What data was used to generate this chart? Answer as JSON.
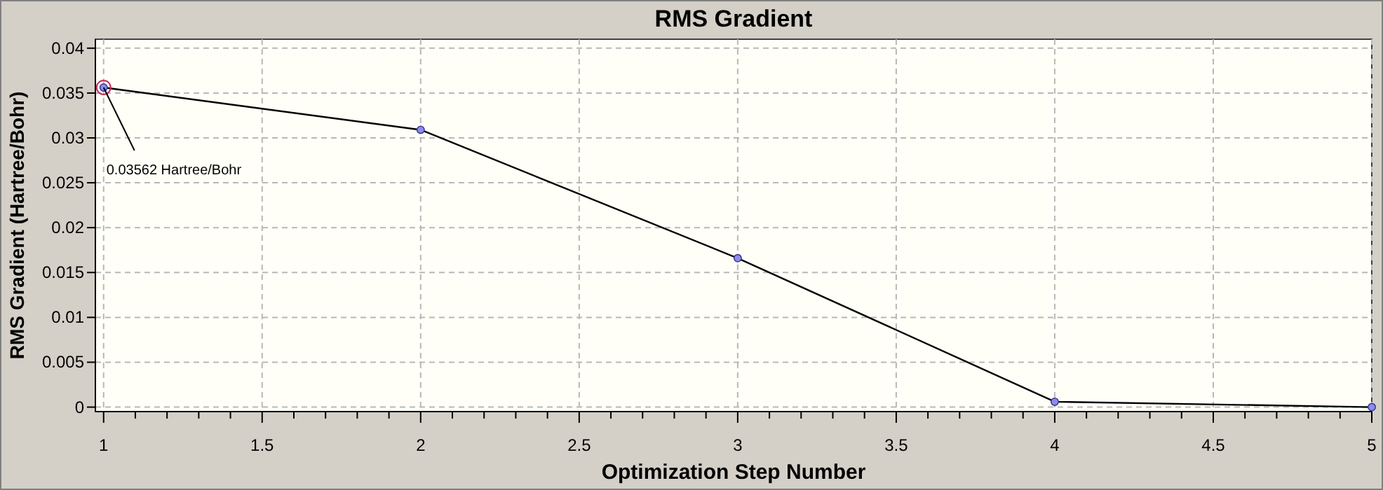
{
  "chart_data": {
    "type": "line",
    "title": "RMS Gradient",
    "xlabel": "Optimization Step Number",
    "ylabel": "RMS Gradient (Hartree/Bohr)",
    "x": [
      1,
      2,
      3,
      4,
      5
    ],
    "series": [
      {
        "color": "#000000",
        "values": [
          0.03562,
          0.0309,
          0.0166,
          0.0006,
          0
        ]
      }
    ],
    "xlim": [
      0.974,
      5
    ],
    "ylim": [
      -0.0005,
      0.041
    ],
    "xticks": [
      1,
      {
        "value": 1.1,
        "label": null
      },
      {
        "value": 1.2,
        "label": null
      },
      {
        "value": 1.3,
        "label": null
      },
      {
        "value": 1.4,
        "label": null
      },
      1.5,
      {
        "value": 1.6,
        "label": null
      },
      {
        "value": 1.7,
        "label": null
      },
      {
        "value": 1.8,
        "label": null
      },
      {
        "value": 1.9,
        "label": null
      },
      2,
      {
        "value": 2.1,
        "label": null
      },
      {
        "value": 2.2,
        "label": null
      },
      {
        "value": 2.3,
        "label": null
      },
      {
        "value": 2.4,
        "label": null
      },
      2.5,
      {
        "value": 2.6,
        "label": null
      },
      {
        "value": 2.7,
        "label": null
      },
      {
        "value": 2.8,
        "label": null
      },
      {
        "value": 2.9,
        "label": null
      },
      3,
      {
        "value": 3.1,
        "label": null
      },
      {
        "value": 3.2,
        "label": null
      },
      {
        "value": 3.3,
        "label": null
      },
      {
        "value": 3.4,
        "label": null
      },
      3.5,
      {
        "value": 3.6,
        "label": null
      },
      {
        "value": 3.7,
        "label": null
      },
      {
        "value": 3.8,
        "label": null
      },
      {
        "value": 3.9,
        "label": null
      },
      4,
      {
        "value": 4.1,
        "label": null
      },
      {
        "value": 4.2,
        "label": null
      },
      {
        "value": 4.3,
        "label": null
      },
      {
        "value": 4.4,
        "label": null
      },
      4.5,
      {
        "value": 4.6,
        "label": null
      },
      {
        "value": 4.7,
        "label": null
      },
      {
        "value": 4.8,
        "label": null
      },
      {
        "value": 4.9,
        "label": null
      },
      5
    ],
    "yticks": [
      0,
      0.005,
      0.01,
      0.015,
      0.02,
      0.025,
      0.03,
      0.035,
      0.04
    ],
    "grid": true,
    "marker": "circle",
    "line_style": "solid",
    "annotations": [
      {
        "text": "0.03562 Hartree/Bohr",
        "x": 1,
        "y": 0.03562
      }
    ]
  }
}
